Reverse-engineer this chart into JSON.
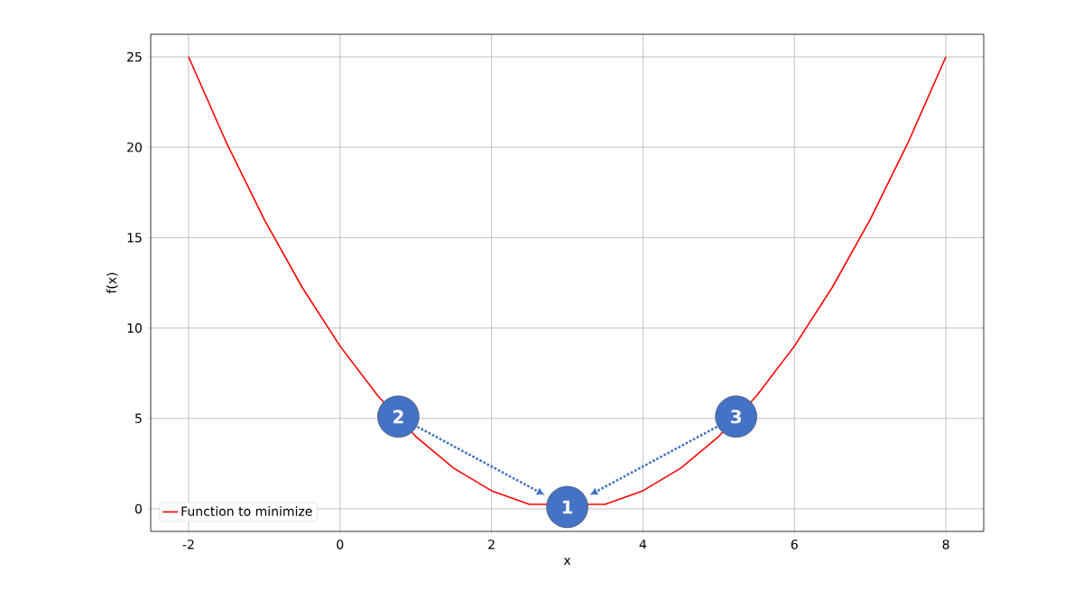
{
  "chart_data": {
    "type": "line",
    "xlabel": "x",
    "ylabel": "f(x)",
    "x": [
      -2,
      -1.5,
      -1,
      -0.5,
      0,
      0.5,
      1,
      1.5,
      2,
      2.5,
      3,
      3.5,
      4,
      4.5,
      5,
      5.5,
      6,
      6.5,
      7,
      7.5,
      8
    ],
    "series": [
      {
        "name": "Function to minimize",
        "color": "#ff0000",
        "values": [
          25,
          20.25,
          16,
          12.25,
          9,
          6.25,
          4,
          2.25,
          1,
          0.25,
          null,
          0.25,
          1,
          2.25,
          4,
          6.25,
          9,
          12.25,
          16,
          20.25,
          25
        ]
      }
    ],
    "xlim": [
      -2.5,
      8.5
    ],
    "ylim": [
      -1.25,
      26.25
    ],
    "xticks": [
      -2,
      0,
      2,
      4,
      6,
      8
    ],
    "yticks": [
      0,
      5,
      10,
      15,
      20,
      25
    ],
    "grid": true,
    "legend": "bottom left",
    "marker": "none",
    "line_style": "solid",
    "annotations": [
      {
        "text": "1",
        "x": 3,
        "y": 0.1
      },
      {
        "text": "2",
        "x": 0.77,
        "y": 5.1
      },
      {
        "text": "3",
        "x": 5.23,
        "y": 5.1
      }
    ]
  }
}
